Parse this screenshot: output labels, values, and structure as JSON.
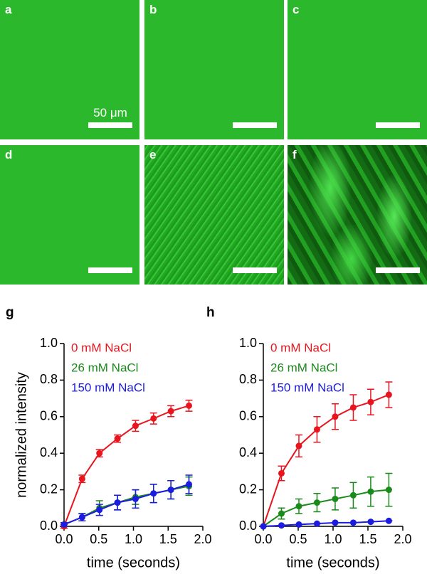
{
  "panels": [
    {
      "label": "a",
      "scale_bar": "50 μm"
    },
    {
      "label": "b"
    },
    {
      "label": "c"
    },
    {
      "label": "d"
    },
    {
      "label": "e"
    },
    {
      "label": "f"
    }
  ],
  "chart_data": [
    {
      "type": "line",
      "panel_label": "g",
      "x_label": "time (seconds)",
      "y_label": "normalized intensity",
      "x": [
        0,
        0.26,
        0.51,
        0.77,
        1.03,
        1.29,
        1.54,
        1.8
      ],
      "series": [
        {
          "name": "0 mM NaCl",
          "color": "#e8141e",
          "values": [
            0,
            0.26,
            0.4,
            0.48,
            0.55,
            0.59,
            0.63,
            0.66
          ],
          "errors": [
            0.01,
            0.02,
            0.02,
            0.02,
            0.03,
            0.03,
            0.03,
            0.03
          ]
        },
        {
          "name": "26 mM NaCl",
          "color": "#1a8a1a",
          "values": [
            0.01,
            0.05,
            0.1,
            0.13,
            0.16,
            0.18,
            0.2,
            0.22
          ],
          "errors": [
            0.01,
            0.02,
            0.04,
            0.04,
            0.04,
            0.05,
            0.05,
            0.05
          ]
        },
        {
          "name": "150 mM NaCl",
          "color": "#1c1ce0",
          "values": [
            0.01,
            0.05,
            0.09,
            0.13,
            0.15,
            0.18,
            0.2,
            0.23
          ],
          "errors": [
            0.01,
            0.02,
            0.03,
            0.04,
            0.05,
            0.05,
            0.05,
            0.05
          ]
        }
      ],
      "xlim": [
        0,
        2
      ],
      "ylim": [
        0,
        1
      ],
      "xticks": [
        {
          "value": 0,
          "label": "0.0"
        },
        0.5,
        {
          "value": 1,
          "label": "1.0"
        },
        1.5,
        {
          "value": 2,
          "label": "2.0"
        }
      ],
      "yticks": [
        {
          "value": 0,
          "label": "0.0"
        },
        0.2,
        0.4,
        0.6,
        0.8,
        {
          "value": 1,
          "label": "1.0"
        }
      ]
    },
    {
      "type": "line",
      "panel_label": "h",
      "x_label": "time (seconds)",
      "x": [
        0,
        0.26,
        0.51,
        0.77,
        1.03,
        1.29,
        1.54,
        1.8
      ],
      "series": [
        {
          "name": "0 mM NaCl",
          "color": "#e8141e",
          "values": [
            0,
            0.29,
            0.44,
            0.53,
            0.6,
            0.65,
            0.68,
            0.72
          ],
          "errors": [
            0,
            0.04,
            0.06,
            0.07,
            0.07,
            0.07,
            0.07,
            0.07
          ]
        },
        {
          "name": "26 mM NaCl",
          "color": "#1a8a1a",
          "values": [
            0,
            0.07,
            0.11,
            0.13,
            0.15,
            0.17,
            0.19,
            0.2
          ],
          "errors": [
            0,
            0.03,
            0.04,
            0.05,
            0.06,
            0.07,
            0.08,
            0.09
          ]
        },
        {
          "name": "150 mM NaCl",
          "color": "#1c1ce0",
          "values": [
            0,
            0.005,
            0.01,
            0.015,
            0.02,
            0.02,
            0.025,
            0.03
          ],
          "errors": [
            0,
            0,
            0,
            0,
            0,
            0,
            0,
            0
          ]
        }
      ],
      "xlim": [
        0,
        2
      ],
      "ylim": [
        0,
        1
      ],
      "xticks": [
        {
          "value": 0,
          "label": "0.0"
        },
        0.5,
        {
          "value": 1,
          "label": "1.0"
        },
        1.5,
        {
          "value": 2,
          "label": "2.0"
        }
      ],
      "yticks": [
        {
          "value": 0,
          "label": "0.0"
        },
        0.2,
        0.4,
        0.6,
        0.8,
        {
          "value": 1,
          "label": "1.0"
        }
      ]
    }
  ]
}
